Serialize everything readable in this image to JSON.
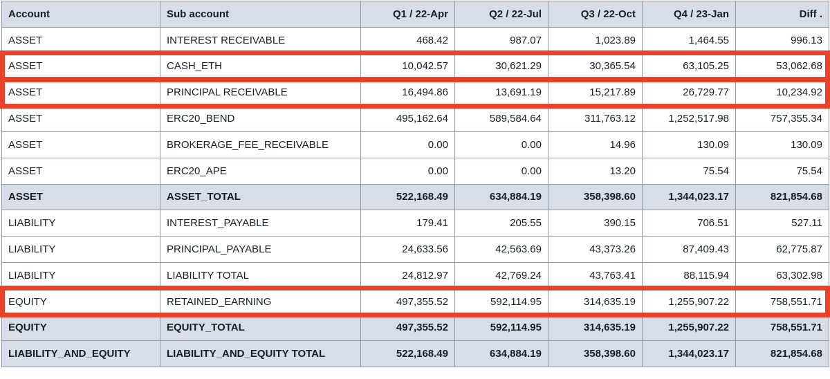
{
  "table": {
    "headers": [
      "Account",
      "Sub account",
      "Q1 / 22-Apr",
      "Q2 / 22-Jul",
      "Q3 / 22-Oct",
      "Q4 / 23-Jan",
      "Diff ."
    ],
    "rows": [
      {
        "account": "ASSET",
        "sub": "INTEREST RECEIVABLE",
        "q1": "468.42",
        "q2": "987.07",
        "q3": "1,023.89",
        "q4": "1,464.55",
        "diff": "996.13",
        "total": false,
        "highlighted": false
      },
      {
        "account": "ASSET",
        "sub": "CASH_ETH",
        "q1": "10,042.57",
        "q2": "30,621.29",
        "q3": "30,365.54",
        "q4": "63,105.25",
        "diff": "53,062.68",
        "total": false,
        "highlighted": true
      },
      {
        "account": "ASSET",
        "sub": "PRINCIPAL RECEIVABLE",
        "q1": "16,494.86",
        "q2": "13,691.19",
        "q3": "15,217.89",
        "q4": "26,729.77",
        "diff": "10,234.92",
        "total": false,
        "highlighted": true
      },
      {
        "account": "ASSET",
        "sub": "ERC20_BEND",
        "q1": "495,162.64",
        "q2": "589,584.64",
        "q3": "311,763.12",
        "q4": "1,252,517.98",
        "diff": "757,355.34",
        "total": false,
        "highlighted": false
      },
      {
        "account": "ASSET",
        "sub": "BROKERAGE_FEE_RECEIVABLE",
        "q1": "0.00",
        "q2": "0.00",
        "q3": "14.96",
        "q4": "130.09",
        "diff": "130.09",
        "total": false,
        "highlighted": false
      },
      {
        "account": "ASSET",
        "sub": "ERC20_APE",
        "q1": "0.00",
        "q2": "0.00",
        "q3": "13.20",
        "q4": "75.54",
        "diff": "75.54",
        "total": false,
        "highlighted": false
      },
      {
        "account": "ASSET",
        "sub": "ASSET_TOTAL",
        "q1": "522,168.49",
        "q2": "634,884.19",
        "q3": "358,398.60",
        "q4": "1,344,023.17",
        "diff": "821,854.68",
        "total": true,
        "highlighted": false
      },
      {
        "account": "LIABILITY",
        "sub": "INTEREST_PAYABLE",
        "q1": "179.41",
        "q2": "205.55",
        "q3": "390.15",
        "q4": "706.51",
        "diff": "527.11",
        "total": false,
        "highlighted": false
      },
      {
        "account": "LIABILITY",
        "sub": "PRINCIPAL_PAYABLE",
        "q1": "24,633.56",
        "q2": "42,563.69",
        "q3": "43,373.26",
        "q4": "87,409.43",
        "diff": "62,775.87",
        "total": false,
        "highlighted": false
      },
      {
        "account": "LIABILITY",
        "sub": "LIABILITY TOTAL",
        "q1": "24,812.97",
        "q2": "42,769.24",
        "q3": "43,763.41",
        "q4": "88,115.94",
        "diff": "63,302.98",
        "total": false,
        "highlighted": false
      },
      {
        "account": "EQUITY",
        "sub": "RETAINED_EARNING",
        "q1": "497,355.52",
        "q2": "592,114.95",
        "q3": "314,635.19",
        "q4": "1,255,907.22",
        "diff": "758,551.71",
        "total": false,
        "highlighted": true
      },
      {
        "account": "EQUITY",
        "sub": "EQUITY_TOTAL",
        "q1": "497,355.52",
        "q2": "592,114.95",
        "q3": "314,635.19",
        "q4": "1,255,907.22",
        "diff": "758,551.71",
        "total": true,
        "highlighted": false
      },
      {
        "account": "LIABILITY_AND_EQUITY",
        "sub": "LIABILITY_AND_EQUITY TOTAL",
        "q1": "522,168.49",
        "q2": "634,884.19",
        "q3": "358,398.60",
        "q4": "1,344,023.17",
        "diff": "821,854.68",
        "total": true,
        "highlighted": false
      }
    ]
  },
  "colors": {
    "header_bg": "#d9dde6",
    "total_row_bg": "#d9dde6",
    "highlight": "#e8432a",
    "border": "#8f98a8"
  }
}
